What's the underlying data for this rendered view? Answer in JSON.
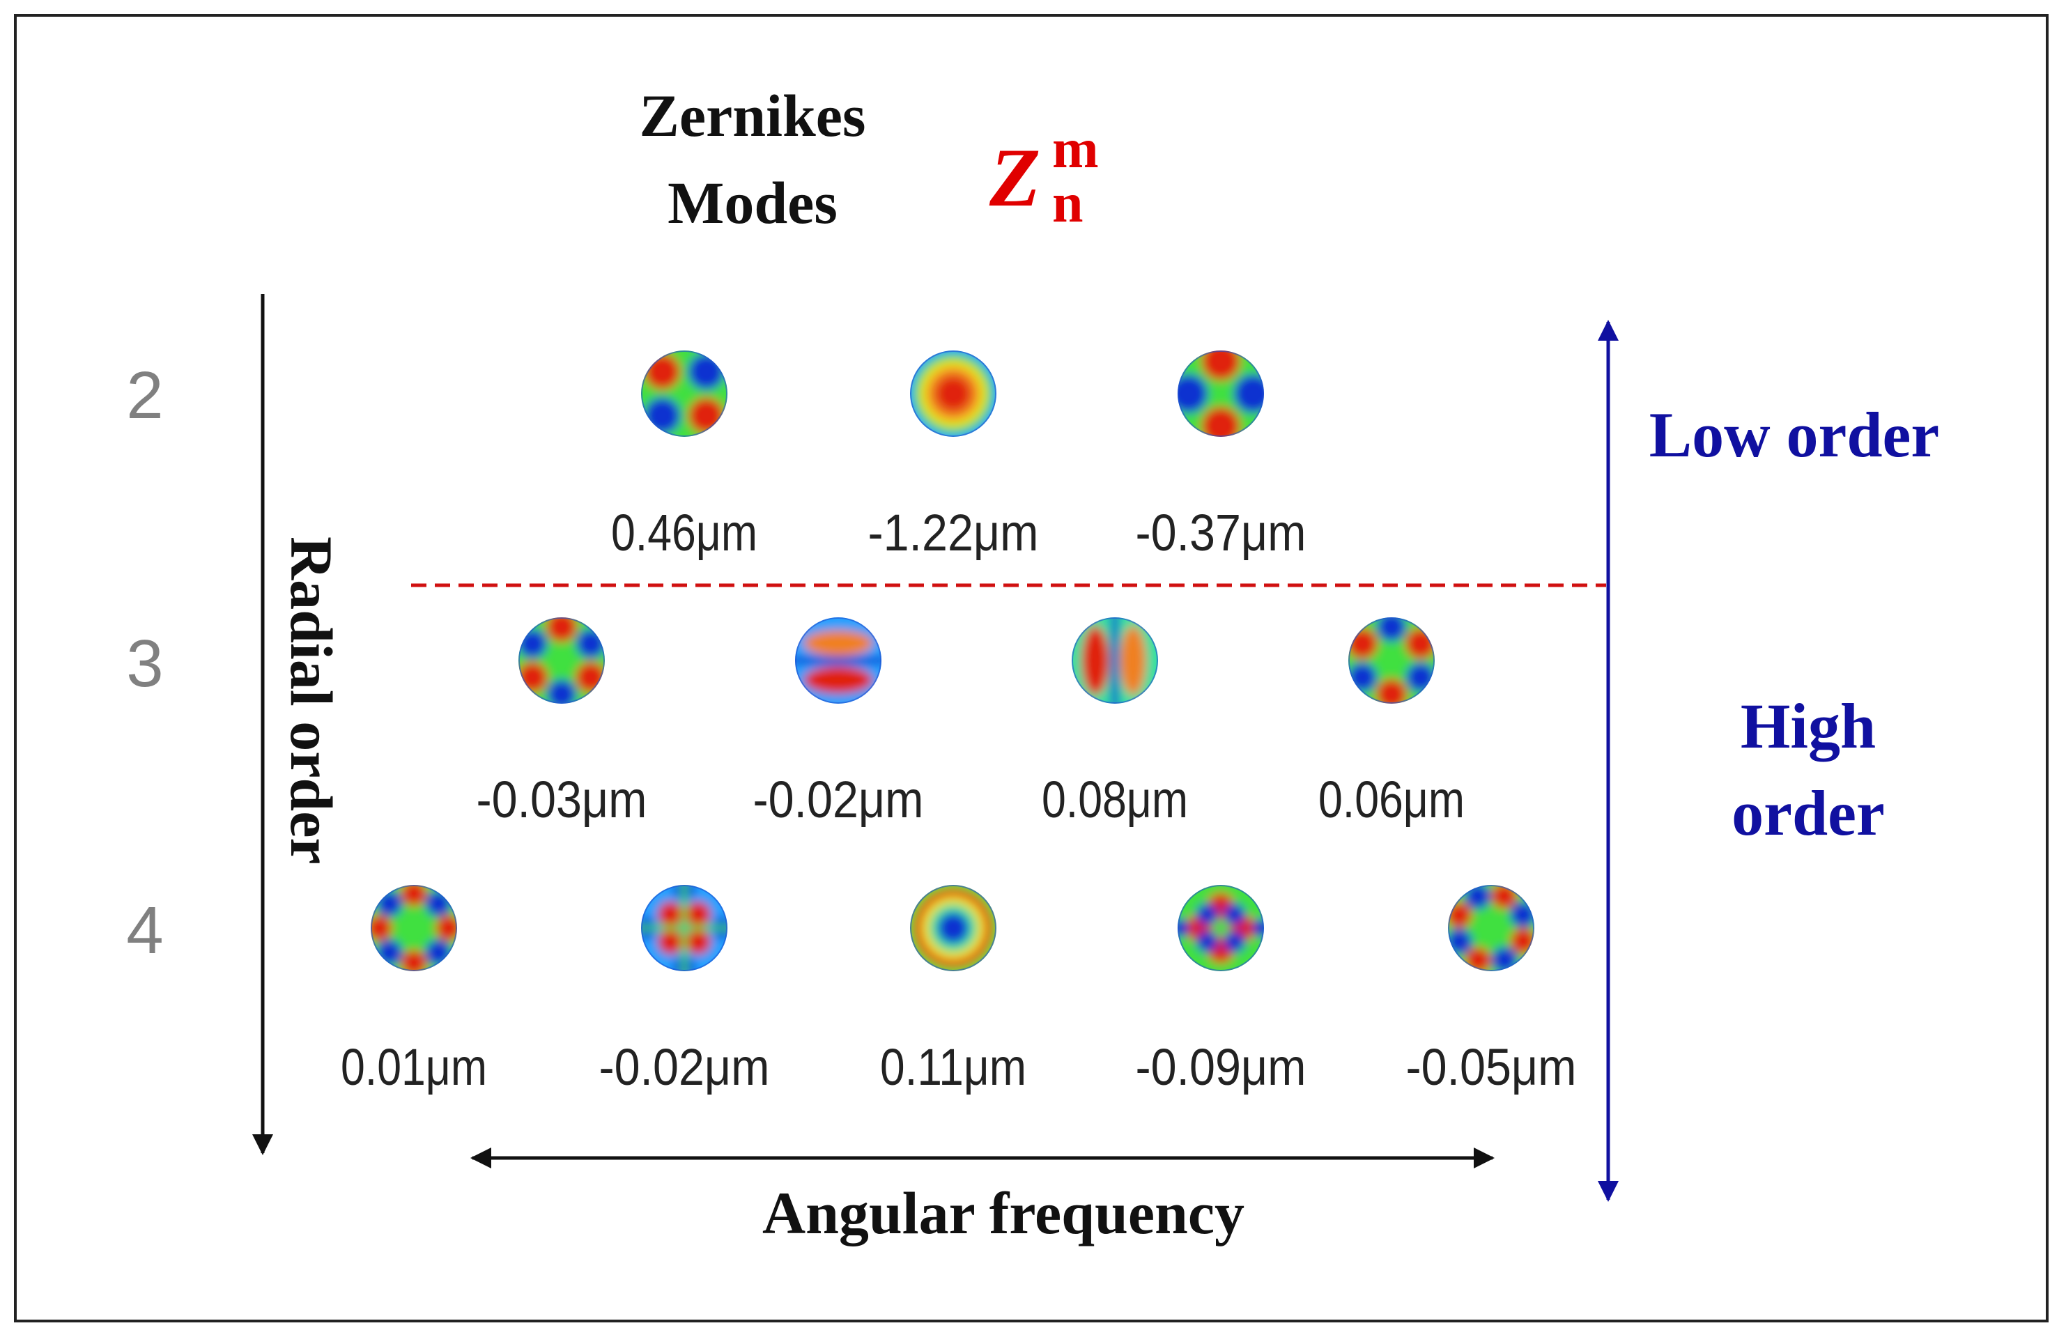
{
  "title": {
    "line1": "Zernikes",
    "line2": "Modes",
    "symbol_base": "Z",
    "symbol_sup": "m",
    "symbol_sub": "n",
    "symbol_color": "#e00000"
  },
  "axes": {
    "radial_label": "Radial order",
    "angular_label": "Angular frequency",
    "low_order_label": "Low order",
    "high_order_line1": "High",
    "high_order_line2": "order",
    "order_color": "#1010a0"
  },
  "rows": [
    {
      "order": "2",
      "modes": [
        {
          "pattern": "astig-45",
          "value": "0.46μm"
        },
        {
          "pattern": "defocus",
          "value": "-1.22μm"
        },
        {
          "pattern": "astig-0",
          "value": "-0.37μm"
        }
      ]
    },
    {
      "order": "3",
      "modes": [
        {
          "pattern": "trefoil-a",
          "value": "-0.03μm"
        },
        {
          "pattern": "coma-v",
          "value": "-0.02μm"
        },
        {
          "pattern": "coma-h",
          "value": "0.08μm"
        },
        {
          "pattern": "trefoil-b",
          "value": "0.06μm"
        }
      ]
    },
    {
      "order": "4",
      "modes": [
        {
          "pattern": "quadrafoil-a",
          "value": "0.01μm"
        },
        {
          "pattern": "sec-astig-a",
          "value": "-0.02μm"
        },
        {
          "pattern": "spherical",
          "value": "0.11μm"
        },
        {
          "pattern": "sec-astig-b",
          "value": "-0.09μm"
        },
        {
          "pattern": "quadrafoil-b",
          "value": "-0.05μm"
        }
      ]
    }
  ],
  "colors": {
    "divider": "#d01010",
    "jet": [
      "#1030d0",
      "#20a0ff",
      "#30e0a0",
      "#40e040",
      "#f0e020",
      "#f08020",
      "#e02010"
    ]
  }
}
